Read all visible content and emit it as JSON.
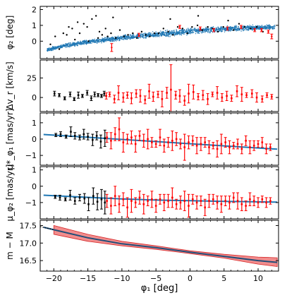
{
  "figure": {
    "xlabel": "φ₁ [deg]",
    "x_ticks": [
      "−20",
      "−15",
      "−10",
      "−5",
      "0",
      "5",
      "10"
    ]
  },
  "chart_data": [
    {
      "type": "scatter",
      "ylabel": "φ₂ [deg]",
      "xlim": [
        -22,
        13
      ],
      "ylim": [
        -1.1,
        2.2
      ],
      "yticks": [
        0,
        1,
        2
      ],
      "ytick_labels": [
        "0",
        "1",
        "2"
      ],
      "series": [
        {
          "color": "#1f77b4",
          "kind": "dense-band",
          "track_x": [
            -21,
            -18,
            -15,
            -12,
            -9,
            -6,
            -3,
            0,
            3,
            6,
            9,
            12.5
          ],
          "track_y": [
            -0.55,
            -0.25,
            -0.05,
            0.1,
            0.25,
            0.38,
            0.5,
            0.62,
            0.72,
            0.8,
            0.85,
            0.88
          ]
        },
        {
          "color": "#000000",
          "kind": "points",
          "x": [
            -20.5,
            -19.8,
            -19.2,
            -18.6,
            -18.1,
            -17.3,
            -16.9,
            -16.2,
            -15.6,
            -15.1,
            -14.4,
            -13.8,
            -13.3,
            -12.9,
            -12.4,
            -12.1,
            -11.6,
            -10.9,
            -10.3,
            -9.7,
            -9.1,
            -8.4,
            -7.8,
            -7.1,
            -6.5,
            -5.9,
            -5.2,
            -4.6,
            -3.9,
            -3.2,
            -2.5,
            -1.8,
            -1.1,
            -0.4,
            0.3,
            1.1,
            1.8,
            2.6,
            3.3,
            4.1,
            4.9,
            5.6,
            6.4,
            7.2,
            8.0,
            8.9,
            9.8,
            10.7,
            -17.8,
            -16.5,
            -14.9,
            -13.5,
            -11.3,
            -2.9,
            1.2
          ],
          "y": [
            -0.2,
            0.3,
            -0.5,
            0.5,
            0.4,
            0.8,
            0.1,
            0.5,
            1.1,
            0.9,
            1.4,
            1.6,
            0.6,
            0.4,
            0.8,
            0.3,
            0.5,
            0.2,
            0.7,
            0.3,
            0.4,
            0.5,
            0.2,
            0.6,
            0.4,
            0.3,
            0.5,
            0.5,
            0.8,
            0.6,
            0.4,
            0.9,
            0.8,
            0.5,
            0.9,
            1.0,
            0.7,
            0.9,
            0.8,
            0.6,
            0.9,
            1.3,
            0.7,
            1.1,
            0.9,
            0.8,
            0.9,
            0.6,
            0.9,
            1.2,
            0.0,
            0.2,
            1.5,
            1.4,
            1.6
          ]
        },
        {
          "color": "#ff0000",
          "kind": "points",
          "x": [
            -11.5,
            -7.5,
            -1.5,
            1.5,
            3.5,
            5.5,
            7.5,
            9.5,
            10.5,
            11.5,
            12.0
          ],
          "y": [
            -0.4,
            0.4,
            0.9,
            0.8,
            0.7,
            0.8,
            0.9,
            0.7,
            0.7,
            0.6,
            0.3
          ],
          "yerr": [
            0.25,
            0.1,
            0.1,
            0.1,
            0.1,
            0.1,
            0.1,
            0.1,
            0.1,
            0.1,
            0.15
          ]
        }
      ]
    },
    {
      "type": "scatter",
      "ylabel": "Δv_r [km/s]",
      "xlim": [
        -22,
        13
      ],
      "ylim": [
        -18,
        48
      ],
      "yticks": [
        0,
        25
      ],
      "ytick_labels": [
        "0",
        "25"
      ],
      "series": [
        {
          "color": "#000000",
          "kind": "errorbars",
          "x": [
            -19.9,
            -19.2,
            -18.4,
            -17.6,
            -17.0,
            -16.4,
            -15.8,
            -15.1,
            -14.5,
            -14.0,
            -13.5,
            -13.0,
            -12.6
          ],
          "y": [
            5,
            3,
            -1,
            4,
            -2,
            3,
            2,
            6,
            -1,
            4,
            3,
            2,
            5
          ],
          "yerr": [
            3,
            2,
            2,
            3,
            2,
            4,
            2,
            3,
            3,
            3,
            2,
            2,
            3
          ]
        },
        {
          "color": "#ff0000",
          "kind": "errorbars",
          "x": [
            -12.3,
            -11.8,
            -11.1,
            -10.5,
            -9.8,
            -9.2,
            -8.6,
            -7.9,
            -7.3,
            -6.6,
            -6.0,
            -5.4,
            -4.7,
            -4.1,
            -3.4,
            -2.8,
            -2.1,
            -1.5,
            -0.8,
            -0.2,
            0.5,
            1.2,
            1.9,
            2.6,
            3.3,
            4.0,
            4.7,
            5.4,
            6.1,
            6.9,
            7.6,
            8.3,
            9.1,
            9.8,
            10.6,
            11.3,
            12.0
          ],
          "y": [
            2,
            4,
            -2,
            6,
            0,
            3,
            -1,
            5,
            2,
            -3,
            8,
            1,
            4,
            -2,
            6,
            10,
            3,
            2,
            -4,
            5,
            7,
            1,
            3,
            -2,
            4,
            6,
            0,
            2,
            -1,
            8,
            4,
            3,
            5,
            0,
            -2,
            3,
            1
          ],
          "yerr": [
            4,
            3,
            5,
            9,
            6,
            4,
            7,
            5,
            8,
            5,
            9,
            6,
            4,
            10,
            7,
            32,
            5,
            8,
            6,
            12,
            9,
            4,
            6,
            7,
            3,
            8,
            5,
            6,
            4,
            7,
            9,
            3,
            5,
            6,
            4,
            3,
            3
          ]
        }
      ]
    },
    {
      "type": "scatter",
      "ylabel": "μ*_φ₁ [mas/yr]",
      "xlim": [
        -22,
        13
      ],
      "ylim": [
        -1.6,
        1.6
      ],
      "yticks": [
        -1,
        0,
        1
      ],
      "ytick_labels": [
        "−1",
        "0",
        "1"
      ],
      "series": [
        {
          "color": "#1f77b4",
          "kind": "line",
          "x": [
            -21.5,
            12.8
          ],
          "y": [
            0.28,
            -0.62
          ]
        },
        {
          "color": "#000000",
          "kind": "errorbars",
          "x": [
            -19.7,
            -19.0,
            -18.2,
            -17.5,
            -16.9,
            -16.2,
            -15.6,
            -15.0,
            -14.3,
            -13.7,
            -13.1,
            -12.5
          ],
          "y": [
            0.25,
            0.3,
            0.15,
            0.45,
            0.2,
            0.1,
            0.3,
            0.15,
            -0.05,
            0.2,
            -0.15,
            0.05
          ],
          "yerr": [
            0.1,
            0.15,
            0.1,
            0.3,
            0.2,
            0.15,
            0.3,
            0.2,
            0.35,
            0.25,
            0.4,
            0.5
          ]
        },
        {
          "color": "#ff0000",
          "kind": "errorbars",
          "x": [
            -12.2,
            -11.6,
            -11.0,
            -10.4,
            -9.8,
            -9.2,
            -8.6,
            -8.0,
            -7.4,
            -6.8,
            -6.2,
            -5.6,
            -5.0,
            -4.4,
            -3.8,
            -3.2,
            -2.6,
            -2.0,
            -1.4,
            -0.8,
            -0.2,
            0.4,
            1.0,
            1.6,
            2.2,
            2.8,
            3.4,
            4.0,
            4.6,
            5.2,
            5.8,
            6.4,
            7.0,
            7.6,
            8.2,
            8.8,
            9.4,
            10.0,
            10.6,
            11.2,
            11.8
          ],
          "y": [
            0.1,
            -0.1,
            0.3,
            0.6,
            -0.2,
            0.0,
            0.1,
            -0.3,
            0.2,
            -0.1,
            0.0,
            -0.2,
            -0.3,
            0.1,
            -0.4,
            -0.2,
            -0.1,
            0.0,
            -0.3,
            -0.5,
            -0.2,
            -0.1,
            -0.4,
            -0.3,
            -0.2,
            -0.5,
            -0.4,
            -0.6,
            -0.3,
            -0.2,
            -0.5,
            -0.4,
            -0.3,
            -0.6,
            -0.1,
            -0.5,
            -0.4,
            -0.3,
            -0.2,
            -0.6,
            -0.5
          ],
          "yerr": [
            0.3,
            0.5,
            0.4,
            0.7,
            0.6,
            0.3,
            0.4,
            0.5,
            0.3,
            0.4,
            0.6,
            0.3,
            0.2,
            0.5,
            0.4,
            0.3,
            0.6,
            0.4,
            0.3,
            0.8,
            0.4,
            0.3,
            0.5,
            0.4,
            0.3,
            0.4,
            0.2,
            0.5,
            0.6,
            0.3,
            0.4,
            0.2,
            0.3,
            0.3,
            0.3,
            0.4,
            0.3,
            0.2,
            0.3,
            0.3,
            0.2
          ]
        }
      ]
    },
    {
      "type": "scatter",
      "ylabel": "μ_φ₂ [mas/yr]",
      "xlim": [
        -22,
        13
      ],
      "ylim": [
        -2.0,
        1.2
      ],
      "yticks": [
        -1,
        0,
        1
      ],
      "ytick_labels": [
        "−1",
        "0",
        "1"
      ],
      "series": [
        {
          "color": "#1f77b4",
          "kind": "line",
          "x": [
            -21.5,
            -15,
            -10,
            -5,
            0,
            5,
            10,
            12.8
          ],
          "y": [
            -0.55,
            -0.68,
            -0.78,
            -0.85,
            -0.89,
            -0.93,
            -0.96,
            -0.97
          ]
        },
        {
          "color": "#000000",
          "kind": "errorbars",
          "x": [
            -19.8,
            -19.1,
            -18.3,
            -17.6,
            -16.9,
            -16.2,
            -15.5,
            -14.9,
            -14.2,
            -13.6,
            -13.0,
            -12.5
          ],
          "y": [
            -0.65,
            -0.7,
            -0.8,
            -0.55,
            -0.9,
            -0.7,
            -0.75,
            -1.1,
            -0.6,
            -0.95,
            -0.8,
            -1.0
          ],
          "yerr": [
            0.1,
            0.15,
            0.1,
            0.3,
            0.2,
            0.2,
            0.3,
            0.4,
            0.5,
            0.5,
            0.6,
            0.7
          ]
        },
        {
          "color": "#ff0000",
          "kind": "errorbars",
          "x": [
            -12.2,
            -11.6,
            -11.0,
            -10.4,
            -9.8,
            -9.2,
            -8.6,
            -8.0,
            -7.4,
            -6.8,
            -6.2,
            -5.6,
            -5.0,
            -4.4,
            -3.8,
            -3.2,
            -2.6,
            -2.0,
            -1.4,
            -0.8,
            -0.2,
            0.4,
            1.0,
            1.6,
            2.2,
            2.8,
            3.4,
            4.0,
            4.6,
            5.2,
            5.8,
            6.4,
            7.0,
            7.6,
            8.2,
            8.8,
            9.4,
            10.0,
            10.6,
            11.2,
            11.8
          ],
          "y": [
            -0.9,
            -1.2,
            -0.6,
            -1.1,
            -0.8,
            -1.3,
            -0.9,
            -1.0,
            -0.7,
            -1.1,
            -0.9,
            -0.8,
            -1.2,
            -0.8,
            -1.0,
            -0.9,
            -0.7,
            -1.1,
            -1.0,
            -0.9,
            -1.2,
            -0.8,
            -1.0,
            -0.9,
            -1.3,
            -0.9,
            -0.8,
            -1.0,
            -1.1,
            -0.9,
            -1.0,
            -0.7,
            -0.9,
            -1.1,
            -1.2,
            -0.8,
            -0.9,
            -1.0,
            -0.8,
            -1.0,
            -0.9
          ],
          "yerr": [
            0.4,
            0.5,
            0.6,
            0.5,
            0.4,
            0.6,
            0.7,
            0.3,
            0.4,
            0.6,
            0.3,
            0.5,
            0.4,
            0.3,
            0.5,
            0.4,
            0.6,
            0.3,
            0.4,
            0.6,
            0.7,
            0.3,
            0.4,
            0.3,
            0.5,
            0.4,
            0.3,
            0.4,
            0.5,
            0.3,
            0.4,
            0.3,
            0.5,
            0.4,
            0.3,
            0.4,
            0.3,
            0.3,
            0.2,
            0.3,
            0.2
          ]
        }
      ]
    },
    {
      "type": "area",
      "ylabel": "m − M",
      "xlim": [
        -22,
        13
      ],
      "ylim": [
        16.2,
        17.65
      ],
      "yticks": [
        16.5,
        17.0,
        17.5
      ],
      "ytick_labels": [
        "16.5",
        "17.0",
        "17.5"
      ],
      "series": [
        {
          "color": "#f08080",
          "kind": "band",
          "x": [
            -20,
            -15,
            -10,
            -5,
            0,
            5,
            10,
            12.8
          ],
          "lower": [
            17.25,
            17.05,
            16.92,
            16.82,
            16.7,
            16.57,
            16.4,
            16.33
          ],
          "upper": [
            17.5,
            17.25,
            17.05,
            16.92,
            16.78,
            16.68,
            16.6,
            16.58
          ]
        },
        {
          "color": "#1f4e79",
          "kind": "line",
          "x": [
            -21.5,
            -20,
            -15,
            -10,
            -5,
            0,
            5,
            10,
            12.8
          ],
          "y": [
            17.45,
            17.38,
            17.15,
            16.98,
            16.87,
            16.74,
            16.62,
            16.5,
            16.45
          ]
        },
        {
          "color": "#000000",
          "kind": "line-dotted",
          "x": [
            -22,
            -20
          ],
          "y": [
            17.47,
            17.38
          ]
        }
      ]
    }
  ]
}
